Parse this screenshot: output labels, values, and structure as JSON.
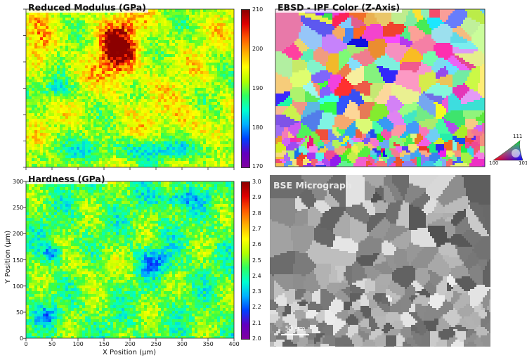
{
  "panels": {
    "modulus": {
      "title": "Reduced Modulus (GPa)",
      "colorbar_ticks": [
        "210",
        "200",
        "190",
        "180",
        "170"
      ]
    },
    "ebsd": {
      "title": "EBSD - IPF Color (Z-Axis)",
      "legend": {
        "top": "111",
        "left": "100",
        "right": "101"
      }
    },
    "hardness": {
      "title": "Hardness (GPa)",
      "colorbar_ticks": [
        "3.0",
        "2.9",
        "2.8",
        "2.7",
        "2.6",
        "2.5",
        "2.4",
        "2.3",
        "2.2",
        "2.1",
        "2.0"
      ]
    },
    "bse": {
      "title": "BSE Micrograph",
      "scalebar_label": "50 µm"
    }
  },
  "axes": {
    "x_label": "X Position (µm)",
    "y_label": "Y Position (µm)",
    "x_ticks": [
      "0",
      "50",
      "100",
      "150",
      "200",
      "250",
      "300",
      "350",
      "400"
    ],
    "y_ticks": [
      "300",
      "250",
      "200",
      "150",
      "100",
      "50",
      "0"
    ]
  }
}
